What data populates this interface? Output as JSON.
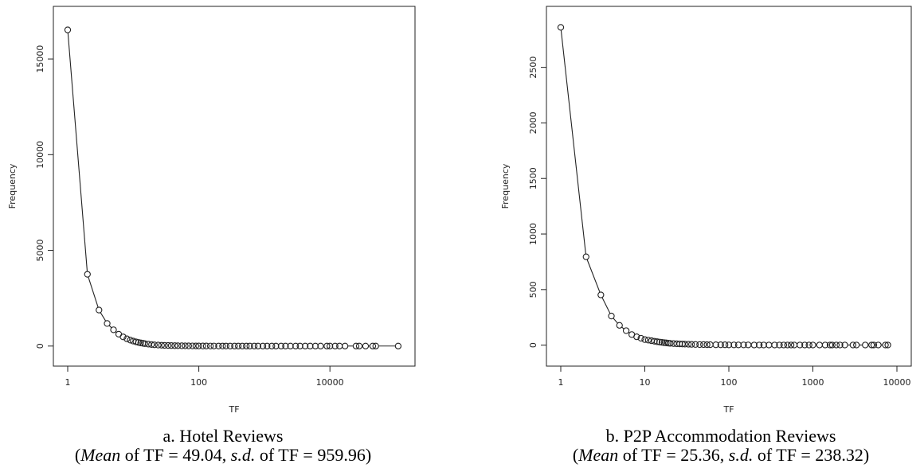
{
  "chart_data": [
    {
      "type": "line",
      "xlabel": "TF",
      "ylabel": "Frequency",
      "x_scale": "log10",
      "xlim": [
        1,
        120000
      ],
      "ylim": [
        -300,
        17000
      ],
      "x_ticks": [
        1,
        100,
        10000
      ],
      "x_tick_labels": [
        "1",
        "100",
        "10000"
      ],
      "y_ticks": [
        0,
        5000,
        10000,
        15000
      ],
      "y_tick_labels": [
        "0",
        "5000",
        "10000",
        "15000"
      ],
      "markers": "open-circle",
      "series": [
        {
          "x": [
            1,
            2,
            3,
            4,
            5,
            6,
            7,
            8,
            9,
            10,
            11,
            12,
            13,
            14,
            15,
            17,
            19,
            21,
            24,
            27,
            30,
            34,
            38,
            43,
            48,
            55,
            62,
            70,
            80,
            90,
            100,
            115,
            130,
            150,
            170,
            200,
            230,
            260,
            300,
            350,
            400,
            460,
            530,
            600,
            700,
            800,
            950,
            1100,
            1300,
            1500,
            1800,
            2100,
            2500,
            3000,
            3500,
            4200,
            5000,
            6000,
            7200,
            9000,
            10000,
            12000,
            14000,
            17000,
            25000,
            28000,
            35000,
            45000,
            50000,
            110000
          ],
          "y": [
            16520,
            3750,
            1880,
            1180,
            850,
            620,
            480,
            380,
            310,
            260,
            220,
            190,
            165,
            145,
            125,
            100,
            80,
            65,
            52,
            43,
            36,
            30,
            25,
            20,
            17,
            14,
            12,
            10,
            8,
            7,
            6,
            5,
            4,
            3,
            3,
            2,
            2,
            2,
            1,
            1,
            1,
            1,
            1,
            1,
            1,
            1,
            1,
            1,
            1,
            1,
            1,
            1,
            1,
            1,
            1,
            1,
            1,
            1,
            1,
            1,
            1,
            1,
            1,
            1,
            1,
            1,
            1,
            1,
            1,
            1
          ]
        }
      ]
    },
    {
      "type": "line",
      "xlabel": "TF",
      "ylabel": "Frequency",
      "x_scale": "log10",
      "xlim": [
        1,
        10000
      ],
      "ylim": [
        -60,
        2920
      ],
      "x_ticks": [
        1,
        10,
        100,
        1000,
        10000
      ],
      "x_tick_labels": [
        "1",
        "10",
        "100",
        "1000",
        "10000"
      ],
      "y_ticks": [
        0,
        500,
        1000,
        1500,
        2000,
        2500
      ],
      "y_tick_labels": [
        "0",
        "500",
        "1000",
        "1500",
        "2000",
        "2500"
      ],
      "markers": "open-circle",
      "series": [
        {
          "x": [
            1,
            2,
            3,
            4,
            5,
            6,
            7,
            8,
            9,
            10,
            11,
            12,
            13,
            14,
            15,
            16,
            17,
            18,
            19,
            20,
            22,
            24,
            26,
            28,
            30,
            33,
            36,
            40,
            45,
            50,
            55,
            60,
            70,
            80,
            90,
            100,
            115,
            130,
            150,
            170,
            200,
            230,
            260,
            300,
            350,
            400,
            450,
            500,
            550,
            600,
            700,
            800,
            900,
            1000,
            1200,
            1400,
            1600,
            1700,
            1900,
            2100,
            2400,
            3000,
            3300,
            4200,
            5000,
            5300,
            6000,
            7300,
            7800
          ],
          "y": [
            2860,
            795,
            452,
            262,
            178,
            130,
            95,
            75,
            62,
            50,
            45,
            40,
            35,
            31,
            28,
            25,
            22,
            20,
            18,
            16,
            14,
            12,
            11,
            10,
            9,
            8,
            7,
            6,
            5,
            5,
            4,
            4,
            3,
            3,
            3,
            2,
            2,
            2,
            2,
            2,
            1,
            1,
            1,
            1,
            1,
            1,
            1,
            1,
            1,
            1,
            1,
            1,
            1,
            1,
            1,
            1,
            1,
            1,
            1,
            1,
            1,
            1,
            1,
            1,
            1,
            1,
            1,
            1,
            1
          ]
        }
      ]
    }
  ],
  "captions": [
    {
      "line1": "a. Hotel Reviews",
      "open": "(",
      "mean_word": "Mean",
      "mean_text": " of TF = 49.04, ",
      "sd_word": "s.d.",
      "sd_text": " of TF = 959.96)"
    },
    {
      "line1": "b. P2P Accommodation Reviews",
      "open": "(",
      "mean_word": "Mean",
      "mean_text": " of TF = 25.36, ",
      "sd_word": "s.d.",
      "sd_text": " of TF = 238.32)"
    }
  ]
}
